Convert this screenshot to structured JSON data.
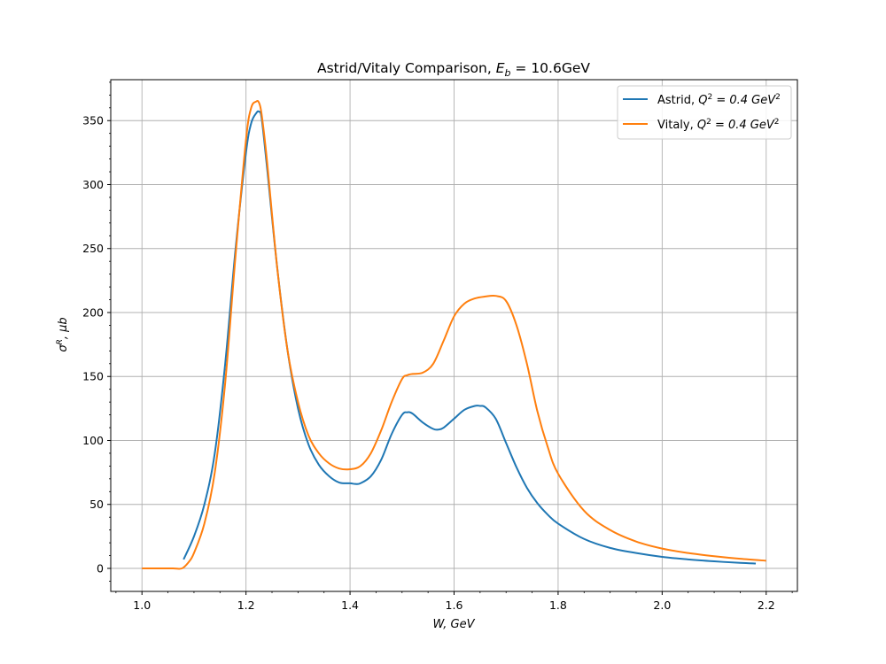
{
  "chart_data": {
    "type": "line",
    "title_prefix": "Astrid/Vitaly Comparison, ",
    "title_symbol": "E",
    "title_subscript": "b",
    "title_suffix": " = 10.6GeV",
    "xlabel": "W, GeV",
    "ylabel_symbol": "σ",
    "ylabel_superscript": "R",
    "ylabel_suffix": ", μb",
    "xlim": [
      0.94,
      2.26
    ],
    "ylim": [
      -18,
      382
    ],
    "xticks": [
      "1.0",
      "1.2",
      "1.4",
      "1.6",
      "1.8",
      "2.0",
      "2.2"
    ],
    "yticks": [
      "0",
      "50",
      "100",
      "150",
      "200",
      "250",
      "300",
      "350"
    ],
    "grid": true,
    "legend_position": "top-right",
    "series": [
      {
        "label_prefix": "Astrid, ",
        "label_math": "Q",
        "label_sup": "2",
        "label_mid": " = 0.4 GeV",
        "label_sup2": "2",
        "color": "#1f77b4",
        "x": [
          1.08,
          1.1,
          1.12,
          1.14,
          1.16,
          1.18,
          1.2,
          1.21,
          1.22,
          1.225,
          1.23,
          1.24,
          1.26,
          1.28,
          1.3,
          1.32,
          1.34,
          1.36,
          1.38,
          1.4,
          1.41,
          1.42,
          1.44,
          1.46,
          1.48,
          1.5,
          1.51,
          1.52,
          1.54,
          1.56,
          1.57,
          1.58,
          1.6,
          1.62,
          1.64,
          1.65,
          1.66,
          1.68,
          1.7,
          1.72,
          1.74,
          1.76,
          1.78,
          1.8,
          1.85,
          1.9,
          1.95,
          2.0,
          2.05,
          2.1,
          2.15,
          2.18
        ],
        "y": [
          7,
          25,
          50,
          90,
          160,
          250,
          325,
          348,
          356,
          357,
          352,
          315,
          235,
          170,
          125,
          97,
          81,
          72,
          67,
          66.5,
          66,
          66.5,
          72,
          85,
          105,
          120,
          122,
          121,
          114,
          109,
          108.5,
          110,
          117,
          124,
          127,
          127,
          126,
          117,
          98,
          79,
          63,
          51,
          42,
          35,
          23,
          16,
          12,
          9,
          7,
          5.5,
          4.3,
          3.8
        ]
      },
      {
        "label_prefix": "Vitaly, ",
        "label_math": "Q",
        "label_sup": "2",
        "label_mid": " = 0.4 GeV",
        "label_sup2": "2",
        "color": "#ff7f0e",
        "x": [
          1.0,
          1.02,
          1.04,
          1.06,
          1.077,
          1.09,
          1.1,
          1.12,
          1.14,
          1.16,
          1.18,
          1.2,
          1.21,
          1.22,
          1.225,
          1.23,
          1.24,
          1.26,
          1.28,
          1.3,
          1.32,
          1.34,
          1.36,
          1.38,
          1.4,
          1.42,
          1.44,
          1.46,
          1.48,
          1.5,
          1.51,
          1.52,
          1.54,
          1.56,
          1.58,
          1.6,
          1.62,
          1.64,
          1.66,
          1.68,
          1.7,
          1.72,
          1.74,
          1.76,
          1.78,
          1.8,
          1.85,
          1.9,
          1.95,
          2.0,
          2.05,
          2.1,
          2.15,
          2.2
        ],
        "y": [
          0,
          0,
          0,
          0,
          0,
          5,
          12,
          35,
          75,
          145,
          245,
          335,
          360,
          365,
          364,
          355,
          320,
          235,
          170,
          130,
          104,
          90,
          82,
          78,
          77.5,
          80,
          90,
          108,
          130,
          148,
          151,
          152,
          153,
          160,
          178,
          197,
          207,
          211,
          212.5,
          213,
          209,
          190,
          160,
          123,
          95,
          74,
          45,
          30,
          21,
          15.5,
          12,
          9.5,
          7.5,
          6
        ]
      }
    ]
  }
}
